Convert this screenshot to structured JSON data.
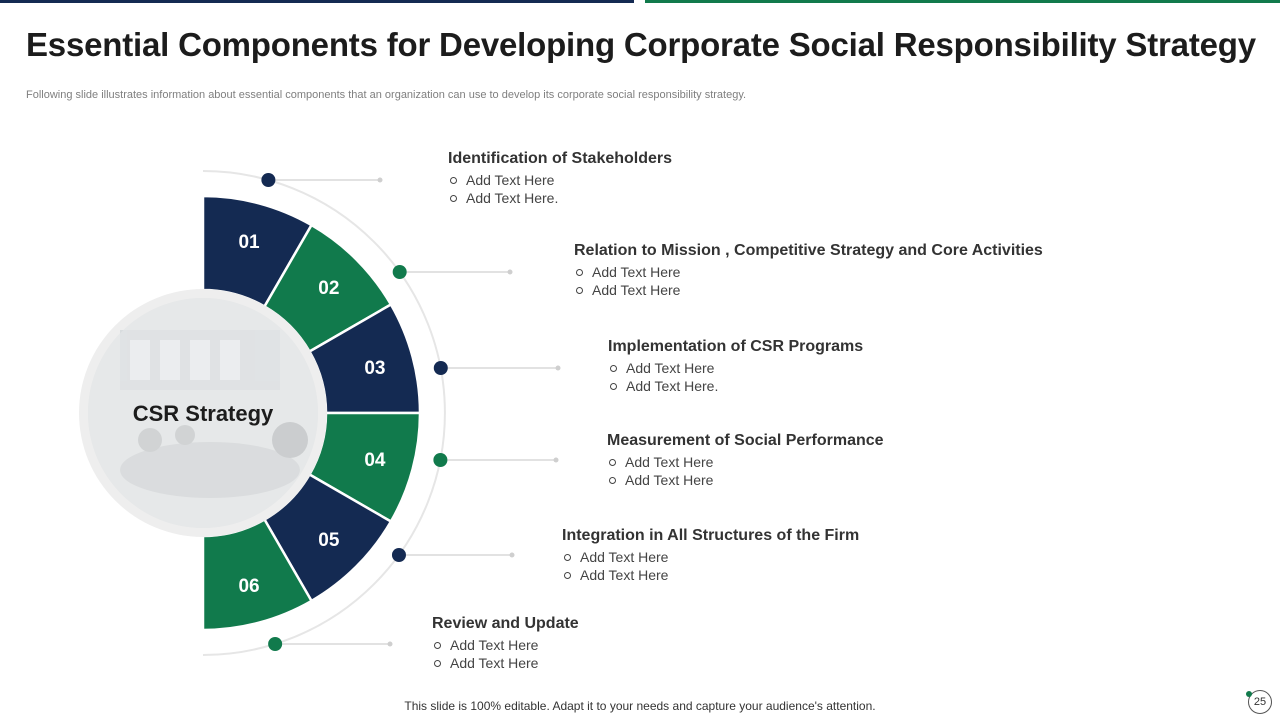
{
  "header": {
    "title": "Essential Components for Developing Corporate Social Responsibility Strategy",
    "subtitle": "Following slide illustrates information about essential components that an organization can use to develop its corporate social responsibility strategy."
  },
  "center": {
    "label": "CSR Strategy"
  },
  "segments": [
    {
      "number": "01",
      "color": "#142a52"
    },
    {
      "number": "02",
      "color": "#117a4c"
    },
    {
      "number": "03",
      "color": "#142a52"
    },
    {
      "number": "04",
      "color": "#117a4c"
    },
    {
      "number": "05",
      "color": "#142a52"
    },
    {
      "number": "06",
      "color": "#117a4c"
    }
  ],
  "items": [
    {
      "heading": "Identification of Stakeholders",
      "bullets": [
        "Add Text Here",
        "Add Text Here."
      ]
    },
    {
      "heading": "Relation to Mission , Competitive Strategy and Core Activities",
      "bullets": [
        "Add Text Here",
        "Add Text Here"
      ]
    },
    {
      "heading": "Implementation of CSR Programs",
      "bullets": [
        "Add Text Here",
        "Add Text Here."
      ]
    },
    {
      "heading": "Measurement of Social Performance",
      "bullets": [
        "Add Text Here",
        "Add Text Here"
      ]
    },
    {
      "heading": "Integration in All Structures of the Firm",
      "bullets": [
        "Add Text Here",
        "Add Text Here"
      ]
    },
    {
      "heading": "Review and Update",
      "bullets": [
        "Add Text Here",
        "Add Text Here"
      ]
    }
  ],
  "footer": {
    "note": "This slide is 100% editable. Adapt it to your needs and capture your audience's attention.",
    "page_number": "25"
  },
  "colors": {
    "navy": "#142a52",
    "green": "#117a4c"
  }
}
